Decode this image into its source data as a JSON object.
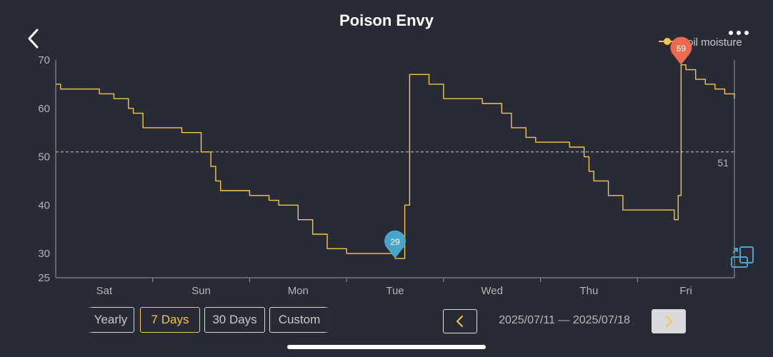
{
  "header": {
    "title": "Poison Envy",
    "back_icon": "chevron-left-icon",
    "more_icon": "more-dots-icon"
  },
  "chart_data": {
    "type": "line",
    "series": [
      {
        "name": "Soil moisture",
        "color": "#f2c744",
        "x": [
          0,
          0.05,
          0.2,
          0.35,
          0.45,
          0.6,
          0.75,
          0.8,
          0.9,
          1.0,
          1.1,
          1.3,
          1.5,
          1.6,
          1.65,
          1.7,
          1.8,
          2.0,
          2.2,
          2.3,
          2.5,
          2.65,
          2.8,
          3.0,
          3.1,
          3.3,
          3.45,
          3.5,
          3.52,
          3.55,
          3.6,
          3.65,
          3.75,
          3.85,
          4.0,
          4.2,
          4.4,
          4.6,
          4.7,
          4.85,
          4.95,
          5.0,
          5.1,
          5.3,
          5.45,
          5.5,
          5.55,
          5.7,
          5.85,
          6.0,
          6.2,
          6.35,
          6.38,
          6.4,
          6.42,
          6.45,
          6.5,
          6.6,
          6.7,
          6.8,
          6.9,
          7.0
        ],
        "values": [
          65,
          64,
          64,
          64,
          63,
          62,
          60,
          59,
          56,
          56,
          56,
          55,
          51,
          48,
          45,
          43,
          43,
          42,
          41,
          40,
          37,
          34,
          31,
          30,
          30,
          30,
          30,
          29,
          29,
          29,
          40,
          67,
          67,
          65,
          62,
          62,
          61,
          59,
          56,
          54,
          53,
          53,
          53,
          52,
          50,
          47,
          45,
          42,
          39,
          39,
          39,
          39,
          37,
          37,
          42,
          69,
          68,
          66,
          65,
          64,
          63,
          62
        ]
      }
    ],
    "categories": [
      "Sat",
      "Sun",
      "Mon",
      "Tue",
      "Wed",
      "Thu",
      "Fri"
    ],
    "yticks": [
      "70",
      "60",
      "50",
      "40",
      "30",
      "25"
    ],
    "ylim": [
      25,
      70
    ],
    "xlim": [
      0,
      7
    ],
    "reference_line": {
      "value": 51,
      "label": "51"
    },
    "markers": {
      "min": {
        "x": 3.5,
        "value": 29,
        "label": "29",
        "color": "#4aa3c8"
      },
      "max": {
        "x": 6.45,
        "value": 69,
        "label": "69",
        "color": "#ec6a4f"
      }
    },
    "legend": {
      "label": "Soil moisture",
      "placement": "top-right"
    },
    "colors": {
      "axis": "#9a9aa0",
      "grid": "#c8c8c8",
      "line": "#f2c744"
    }
  },
  "controls": {
    "ranges": [
      {
        "label": "Yearly",
        "active": false
      },
      {
        "label": "7 Days",
        "active": true
      },
      {
        "label": "30 Days",
        "active": false
      },
      {
        "label": "Custom",
        "active": false
      }
    ],
    "prev_icon": "chevron-left-icon",
    "next_icon": "chevron-right-icon",
    "date_range": "2025/07/11 — 2025/07/18",
    "expand_icon": "expand-icon"
  }
}
